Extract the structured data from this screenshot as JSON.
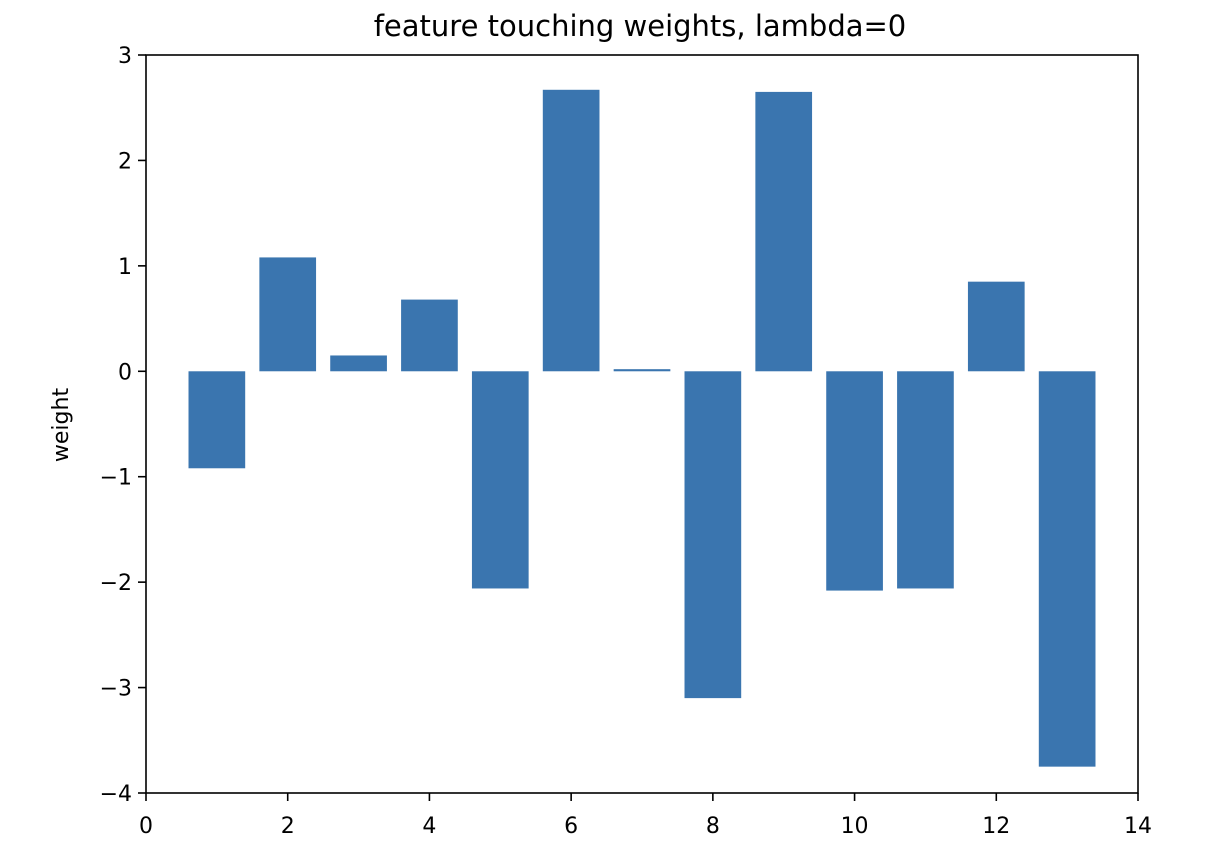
{
  "chart_data": {
    "type": "bar",
    "title": "feature touching weights, lambda=0",
    "xlabel": "",
    "ylabel": "weight",
    "x": [
      1,
      2,
      3,
      4,
      5,
      6,
      7,
      8,
      9,
      10,
      11,
      12,
      13
    ],
    "values": [
      -0.92,
      1.08,
      0.15,
      0.68,
      -2.06,
      2.67,
      0.02,
      -3.1,
      2.65,
      -2.08,
      -2.06,
      0.85,
      -3.75
    ],
    "xlim": [
      0,
      14
    ],
    "ylim": [
      -4,
      3
    ],
    "xticks": [
      0,
      2,
      4,
      6,
      8,
      10,
      12,
      14
    ],
    "xtick_labels": [
      "0",
      "2",
      "4",
      "6",
      "8",
      "10",
      "12",
      "14"
    ],
    "yticks": [
      -4,
      -3,
      -2,
      -1,
      0,
      1,
      2,
      3
    ],
    "ytick_labels": [
      "−4",
      "−3",
      "−2",
      "−1",
      "0",
      "1",
      "2",
      "3"
    ],
    "bar_width": 0.8,
    "bar_color": "#3a75af",
    "grid": false,
    "legend": "none"
  }
}
